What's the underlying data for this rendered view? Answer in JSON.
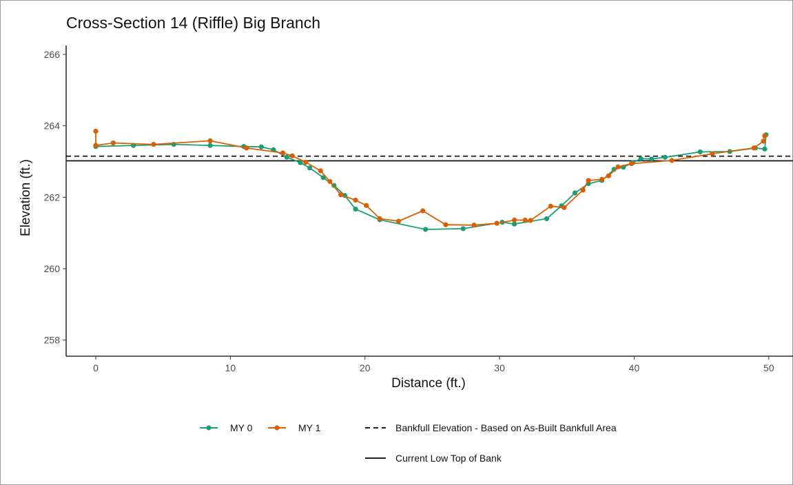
{
  "colors": {
    "my0": "#1b9e77",
    "my1": "#d95f02",
    "ref": "#000000"
  },
  "chart_data": {
    "type": "line",
    "title": "Cross-Section 14 (Riffle) Big Branch",
    "xlabel": "Distance (ft.)",
    "ylabel": "Elevation (ft.)",
    "xlim": [
      -2.2,
      51.8
    ],
    "ylim": [
      257.55,
      266.25
    ],
    "x_ticks": [
      0,
      10,
      20,
      30,
      40,
      50
    ],
    "y_ticks": [
      258,
      260,
      262,
      264,
      266
    ],
    "grid": false,
    "legend_position": "bottom",
    "series": [
      {
        "name": "MY 0",
        "color": "#1b9e77",
        "x": [
          0,
          2.8,
          5.8,
          8.5,
          11,
          12.3,
          13.2,
          14.2,
          15.2,
          15.9,
          16.9,
          17.7,
          18.5,
          19.3,
          21.1,
          24.5,
          27.3,
          30.2,
          31.1,
          33.5,
          34.6,
          35.6,
          36.6,
          37.6,
          38.5,
          39.2,
          39.9,
          40.5,
          41.3,
          42.3,
          44.9,
          47.1,
          49,
          49.7,
          49.8
        ],
        "y": [
          263.42,
          263.45,
          263.48,
          263.45,
          263.42,
          263.41,
          263.33,
          263.12,
          262.97,
          262.82,
          262.55,
          262.33,
          262.05,
          261.67,
          261.37,
          261.1,
          261.12,
          261.3,
          261.25,
          261.4,
          261.76,
          262.12,
          262.38,
          262.47,
          262.78,
          262.84,
          262.97,
          263.08,
          263.07,
          263.12,
          263.27,
          263.28,
          263.38,
          263.35,
          263.75
        ]
      },
      {
        "name": "MY 1",
        "color": "#d95f02",
        "x": [
          0,
          0,
          1.3,
          4.3,
          8.5,
          11.2,
          13.9,
          14.6,
          15.6,
          16.7,
          17.4,
          18.2,
          19.3,
          20.1,
          21.1,
          22.5,
          24.3,
          26,
          28.1,
          29.8,
          31.1,
          31.9,
          32.3,
          33.8,
          34.8,
          36.2,
          36.6,
          37.6,
          38.1,
          38.8,
          39.8,
          42.8,
          45.8,
          48.9,
          49.6,
          49.7
        ],
        "y": [
          263.85,
          263.45,
          263.52,
          263.48,
          263.58,
          263.38,
          263.24,
          263.16,
          262.98,
          262.74,
          262.44,
          262.07,
          261.92,
          261.77,
          261.4,
          261.33,
          261.62,
          261.23,
          261.22,
          261.27,
          261.36,
          261.36,
          261.35,
          261.75,
          261.71,
          262.2,
          262.47,
          262.5,
          262.6,
          262.85,
          262.94,
          263.03,
          263.22,
          263.38,
          263.57,
          263.72
        ]
      }
    ],
    "reference_lines": [
      {
        "name": "Bankfull Elevation - Based on As-Built Bankfull Area",
        "y": 263.15,
        "style": "dashed"
      },
      {
        "name": "Current Low Top of Bank",
        "y": 263.02,
        "style": "solid"
      }
    ]
  }
}
